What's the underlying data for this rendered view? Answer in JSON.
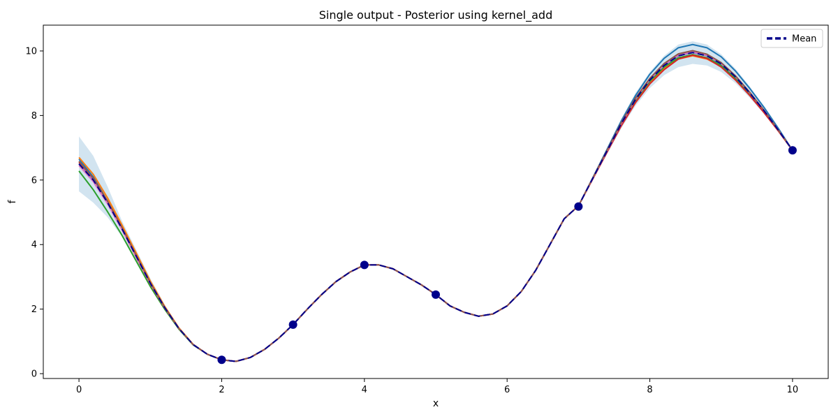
{
  "chart_data": {
    "type": "line",
    "title": "Single output - Posterior using kernel_add",
    "xlabel": "x",
    "ylabel": "f",
    "xlim": [
      -0.5,
      10.5
    ],
    "ylim": [
      -0.15,
      10.8
    ],
    "xticks": [
      0,
      2,
      4,
      6,
      8,
      10
    ],
    "yticks": [
      0,
      2,
      4,
      6,
      8,
      10
    ],
    "grid": false,
    "legend": {
      "placement": "top-right",
      "entries": [
        {
          "label": "Mean",
          "color": "#00008b",
          "style": "dashed"
        }
      ]
    },
    "x": [
      0,
      0.2,
      0.4,
      0.6,
      0.8,
      1.0,
      1.2,
      1.4,
      1.6,
      1.8,
      2.0,
      2.2,
      2.4,
      2.6,
      2.8,
      3.0,
      3.2,
      3.4,
      3.6,
      3.8,
      4.0,
      4.2,
      4.4,
      4.6,
      4.8,
      5.0,
      5.2,
      5.4,
      5.6,
      5.8,
      6.0,
      6.2,
      6.4,
      6.6,
      6.8,
      7.0,
      7.2,
      7.4,
      7.6,
      7.8,
      8.0,
      8.2,
      8.4,
      8.6,
      8.8,
      9.0,
      9.2,
      9.4,
      9.6,
      9.8,
      10.0
    ],
    "mean": [
      6.5,
      6.0,
      5.3,
      4.5,
      3.65,
      2.8,
      2.05,
      1.4,
      0.9,
      0.6,
      0.43,
      0.38,
      0.5,
      0.75,
      1.1,
      1.52,
      2.0,
      2.45,
      2.85,
      3.15,
      3.37,
      3.37,
      3.25,
      3.0,
      2.75,
      2.45,
      2.1,
      1.9,
      1.78,
      1.85,
      2.1,
      2.55,
      3.2,
      4.0,
      4.8,
      5.2,
      6.05,
      6.9,
      7.75,
      8.5,
      9.1,
      9.55,
      9.85,
      9.95,
      9.85,
      9.6,
      9.2,
      8.7,
      8.15,
      7.55,
      6.92
    ],
    "band_lower": [
      5.65,
      5.3,
      4.85,
      4.25,
      3.45,
      2.7,
      2.0,
      1.37,
      0.87,
      0.57,
      0.42,
      0.36,
      0.48,
      0.73,
      1.08,
      1.5,
      1.98,
      2.43,
      2.83,
      3.13,
      3.35,
      3.35,
      3.23,
      2.98,
      2.73,
      2.43,
      2.08,
      1.88,
      1.76,
      1.83,
      2.08,
      2.53,
      3.18,
      3.98,
      4.78,
      5.18,
      6.0,
      6.8,
      7.6,
      8.3,
      8.85,
      9.25,
      9.5,
      9.6,
      9.55,
      9.35,
      9.0,
      8.55,
      8.05,
      7.5,
      6.9
    ],
    "band_upper": [
      7.35,
      6.75,
      5.8,
      4.75,
      3.85,
      2.95,
      2.15,
      1.45,
      0.94,
      0.63,
      0.45,
      0.4,
      0.52,
      0.77,
      1.12,
      1.54,
      2.02,
      2.47,
      2.87,
      3.17,
      3.39,
      3.39,
      3.27,
      3.02,
      2.77,
      2.47,
      2.12,
      1.92,
      1.8,
      1.87,
      2.12,
      2.57,
      3.22,
      4.02,
      4.82,
      5.22,
      6.1,
      7.0,
      7.9,
      8.7,
      9.35,
      9.85,
      10.2,
      10.3,
      10.2,
      9.9,
      9.45,
      8.9,
      8.3,
      7.65,
      6.95
    ],
    "observations": {
      "x": [
        2,
        3,
        4,
        5,
        7,
        10
      ],
      "y": [
        0.43,
        1.52,
        3.37,
        2.45,
        5.18,
        6.92
      ],
      "color": "#00008b"
    },
    "samples": [
      {
        "color": "#1f77b4",
        "offsets": [
          0.15,
          0.1,
          0.05,
          0.03,
          0.02,
          0.01,
          0.005,
          0,
          0,
          0,
          0,
          0,
          0,
          0,
          0,
          0,
          0,
          0,
          0,
          0,
          0,
          0,
          0,
          0,
          0,
          0,
          0,
          0,
          0,
          0,
          0,
          0,
          0,
          0,
          0,
          0,
          0.02,
          0.05,
          0.08,
          0.12,
          0.18,
          0.22,
          0.25,
          0.25,
          0.25,
          0.22,
          0.18,
          0.14,
          0.1,
          0.05,
          0
        ]
      },
      {
        "color": "#ff7f0e",
        "offsets": [
          0.2,
          0.18,
          0.15,
          0.12,
          0.1,
          0.07,
          0.04,
          0.02,
          0.01,
          0,
          0,
          0,
          0,
          0,
          0,
          0,
          0,
          0,
          0,
          0,
          0,
          0,
          0,
          0,
          0,
          0,
          0,
          0,
          0,
          0,
          0,
          0,
          0,
          0,
          0,
          0,
          -0.01,
          -0.02,
          -0.04,
          -0.06,
          -0.08,
          -0.1,
          -0.1,
          -0.1,
          -0.1,
          -0.08,
          -0.06,
          -0.05,
          -0.03,
          -0.02,
          0
        ]
      },
      {
        "color": "#2ca02c",
        "offsets": [
          -0.22,
          -0.3,
          -0.28,
          -0.2,
          -0.15,
          -0.1,
          -0.05,
          -0.02,
          -0.01,
          0,
          0,
          0,
          0,
          0,
          0,
          0,
          0,
          0,
          0,
          0,
          0,
          0,
          0,
          0,
          0,
          0,
          0,
          0,
          0,
          0,
          0,
          0,
          0,
          0,
          0,
          0,
          0,
          0,
          -0.01,
          -0.02,
          -0.04,
          -0.05,
          -0.06,
          -0.06,
          -0.06,
          -0.05,
          -0.04,
          -0.03,
          -0.02,
          -0.01,
          0
        ]
      },
      {
        "color": "#d62728",
        "offsets": [
          0.05,
          0.02,
          0,
          -0.02,
          -0.03,
          -0.02,
          -0.01,
          0,
          0,
          0,
          0,
          0,
          0,
          0,
          0,
          0,
          0,
          0,
          0,
          0,
          0,
          0,
          0,
          0,
          0,
          0,
          0,
          0,
          0,
          0,
          0,
          0,
          0,
          0,
          0,
          0,
          -0.02,
          -0.04,
          -0.07,
          -0.1,
          -0.12,
          -0.13,
          -0.1,
          -0.08,
          -0.08,
          -0.1,
          -0.1,
          -0.08,
          -0.06,
          -0.03,
          0
        ]
      },
      {
        "color": "#9467bd",
        "offsets": [
          0,
          0,
          0,
          0,
          0,
          0,
          0,
          0,
          0,
          0,
          0,
          0,
          0,
          0,
          0,
          0,
          0,
          0,
          0,
          0,
          0,
          0,
          0,
          0,
          0,
          0,
          0,
          0,
          0,
          0,
          0,
          0,
          0,
          0,
          0,
          0,
          0,
          0,
          0,
          0,
          0,
          0,
          0,
          0,
          0,
          0,
          0,
          0,
          0,
          0,
          0
        ]
      },
      {
        "color": "#e377c2",
        "offsets": [
          -0.05,
          -0.05,
          -0.04,
          -0.03,
          -0.02,
          -0.01,
          0,
          0,
          0,
          0,
          0,
          0,
          0,
          0,
          0,
          0,
          0,
          0,
          0,
          0,
          0,
          0,
          0,
          0,
          0,
          0,
          0,
          0,
          0,
          0,
          0,
          0,
          0,
          0,
          0,
          0,
          0,
          0,
          0.01,
          0.02,
          0.03,
          0.03,
          0.03,
          0.03,
          0.03,
          0.02,
          0.02,
          0.01,
          0.01,
          0,
          0
        ]
      },
      {
        "color": "#8c564b",
        "offsets": [
          0.08,
          0.06,
          0.05,
          0.04,
          0.03,
          0.02,
          0.01,
          0,
          0,
          0,
          0,
          0,
          0,
          0,
          0,
          0,
          0,
          0,
          0,
          0,
          0,
          0,
          0,
          0,
          0,
          0,
          0,
          0,
          0,
          0,
          0,
          0,
          0,
          0,
          0,
          0,
          0.01,
          0.02,
          0.03,
          0.04,
          0.05,
          0.06,
          0.06,
          0.06,
          0.05,
          0.04,
          0.03,
          0.02,
          0.01,
          0,
          0
        ]
      }
    ],
    "band_color": "#1f77b4"
  }
}
